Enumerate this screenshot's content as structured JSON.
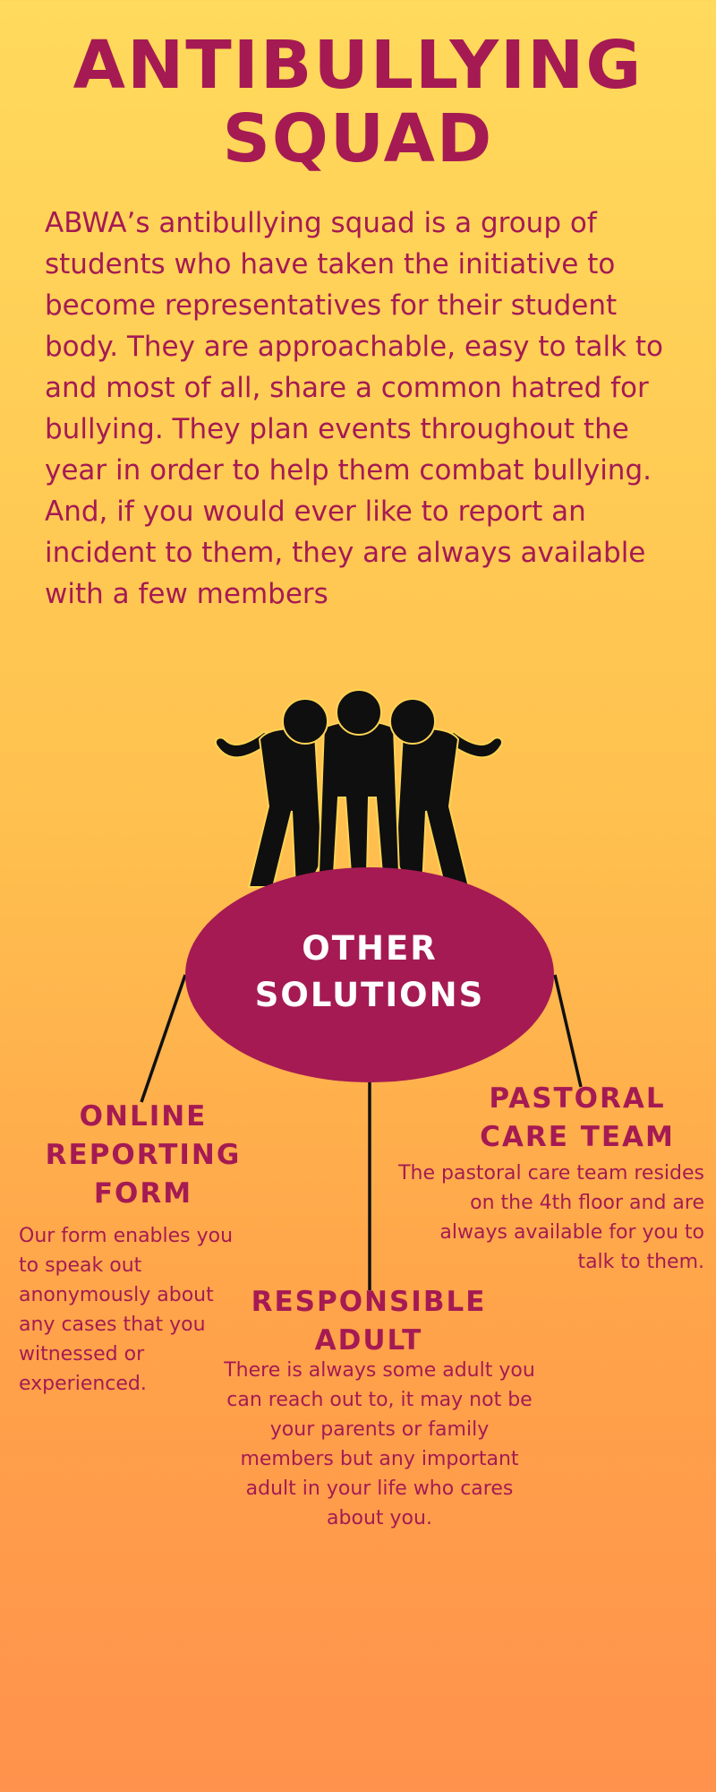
{
  "header": {
    "title_line1": "ANTIBULLYING",
    "title_line2": "SQUAD"
  },
  "intro": {
    "text": "ABWA’s antibullying squad is a group of students who have taken the initiative to become representatives for their student body. They are approachable, easy to talk to and most of all, share a common hatred for bullying. They plan events throughout the year in order to help them combat bullying. And, if you would ever like to report an incident to them, they are always available with a few members"
  },
  "illustration": {
    "icon": "three-friends-silhouette-icon"
  },
  "hub": {
    "label_line1": "OTHER",
    "label_line2": "SOLUTIONS"
  },
  "solutions": {
    "online": {
      "heading_line1": "ONLINE",
      "heading_line2": "REPORTING",
      "heading_line3": "FORM",
      "text": "Our form enables you to speak out anonymously about any cases that you witnessed or experienced."
    },
    "pastoral": {
      "heading_line1": "PASTORAL",
      "heading_line2": "CARE TEAM",
      "text": "The pastoral care team resides on the 4th floor and are always available for you to talk to them."
    },
    "adult": {
      "heading_line1": "RESPONSIBLE",
      "heading_line2": "ADULT",
      "text": "There is always some adult you can reach out to, it may not be your parents or family members but any important adult in your life who cares about you."
    }
  },
  "colors": {
    "accent": "#A51A53",
    "background_top": "#FFDA5C",
    "background_bottom": "#FF924C",
    "silhouette": "#0F0F0F",
    "hub_text": "#FFFFFF"
  }
}
